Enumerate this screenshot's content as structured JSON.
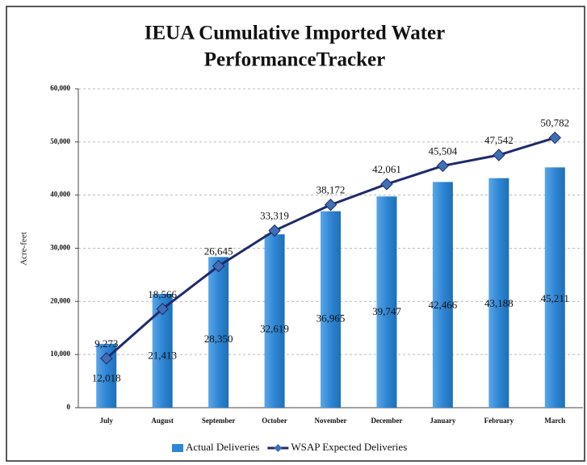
{
  "chart_data": {
    "type": "combo",
    "title": [
      "IEUA Cumulative Imported Water",
      "PerformanceTracker"
    ],
    "y_label": "Acre-feet",
    "categories": [
      "July",
      "August",
      "September",
      "October",
      "November",
      "December",
      "January",
      "February",
      "March"
    ],
    "series": [
      {
        "name": "Actual Deliveries",
        "type": "bar",
        "color": "#2f86d4",
        "values": [
          12018,
          21413,
          28350,
          32619,
          36965,
          39747,
          42466,
          43188,
          45211
        ],
        "value_labels": [
          "12,018",
          "21,413",
          "28,350",
          "32,619",
          "36,965",
          "39,747",
          "42,466",
          "43,188",
          "45,211"
        ]
      },
      {
        "name": "WSAP Expected Deliveries",
        "type": "line",
        "color": "#1f2a6b",
        "values": [
          9273,
          18566,
          26645,
          33319,
          38172,
          42061,
          45504,
          47542,
          50782
        ],
        "value_labels": [
          "9,273",
          "18,566",
          "26,645",
          "33,319",
          "38,172",
          "42,061",
          "45,504",
          "47,542",
          "50,782"
        ]
      }
    ],
    "ylim": [
      0,
      60000
    ],
    "yticks": [
      0,
      {
        "value": 10000,
        "label": "10,000"
      },
      {
        "value": 20000,
        "label": "20,000"
      },
      {
        "value": 30000,
        "label": "30,000"
      },
      {
        "value": 40000,
        "label": "40,000"
      },
      {
        "value": 50000,
        "label": "50,000"
      },
      {
        "value": 60000,
        "label": "60,000"
      }
    ],
    "grid": true,
    "legend": "bottom"
  }
}
